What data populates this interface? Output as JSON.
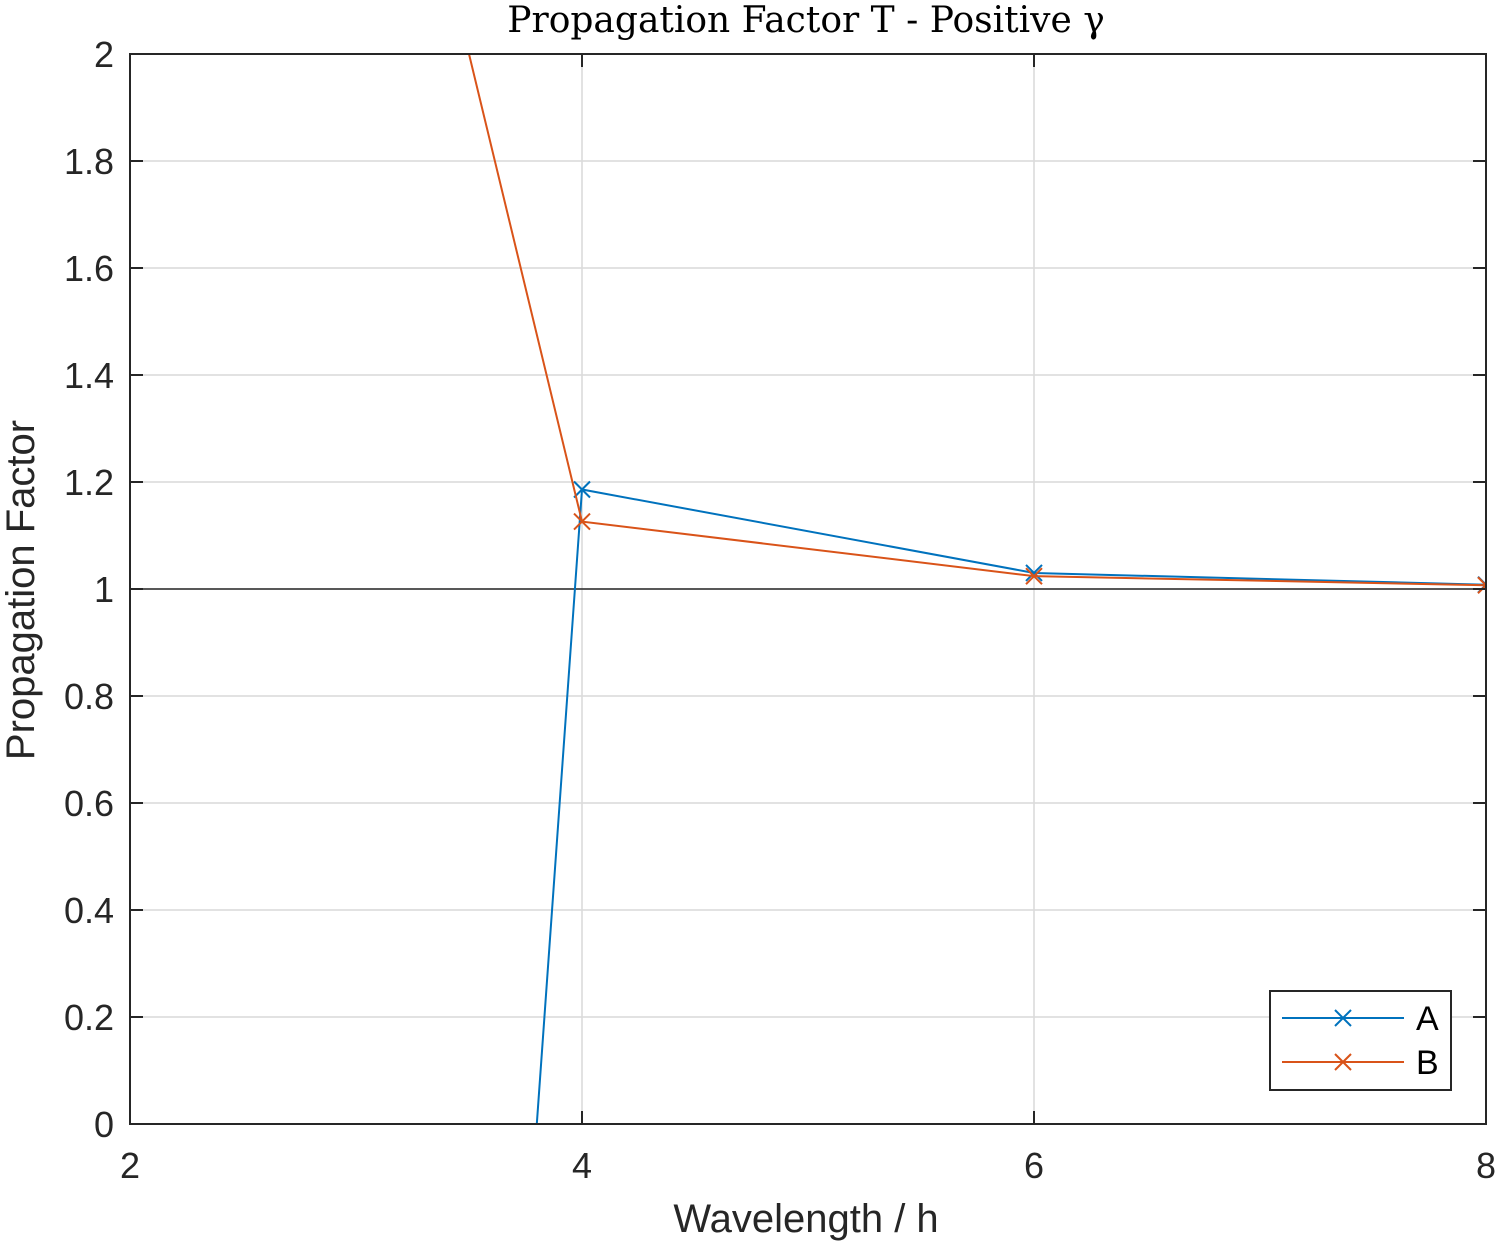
{
  "chart_data": {
    "type": "line",
    "title": "Propagation Factor T - Positive γ",
    "xlabel": "Wavelength / h",
    "ylabel": "Propagation Factor",
    "xlim": [
      2,
      8
    ],
    "ylim": [
      0,
      2
    ],
    "xticks": [
      "2",
      "4",
      "6",
      "8"
    ],
    "yticks": [
      "0",
      "0.2",
      "0.4",
      "0.6",
      "0.8",
      "1",
      "1.2",
      "1.4",
      "1.6",
      "1.8",
      "2"
    ],
    "grid": true,
    "reference_line_y": 1,
    "legend_position": "bottom-right",
    "series": [
      {
        "name": "A",
        "color": "#0072BD",
        "marker": "x",
        "x": [
          3.8,
          4,
          6,
          8
        ],
        "y": [
          0,
          1.186,
          1.03,
          1.008
        ]
      },
      {
        "name": "B",
        "color": "#D95319",
        "marker": "x",
        "x": [
          3.5,
          4,
          6,
          8
        ],
        "y": [
          2.0,
          1.126,
          1.024,
          1.007
        ]
      }
    ]
  }
}
